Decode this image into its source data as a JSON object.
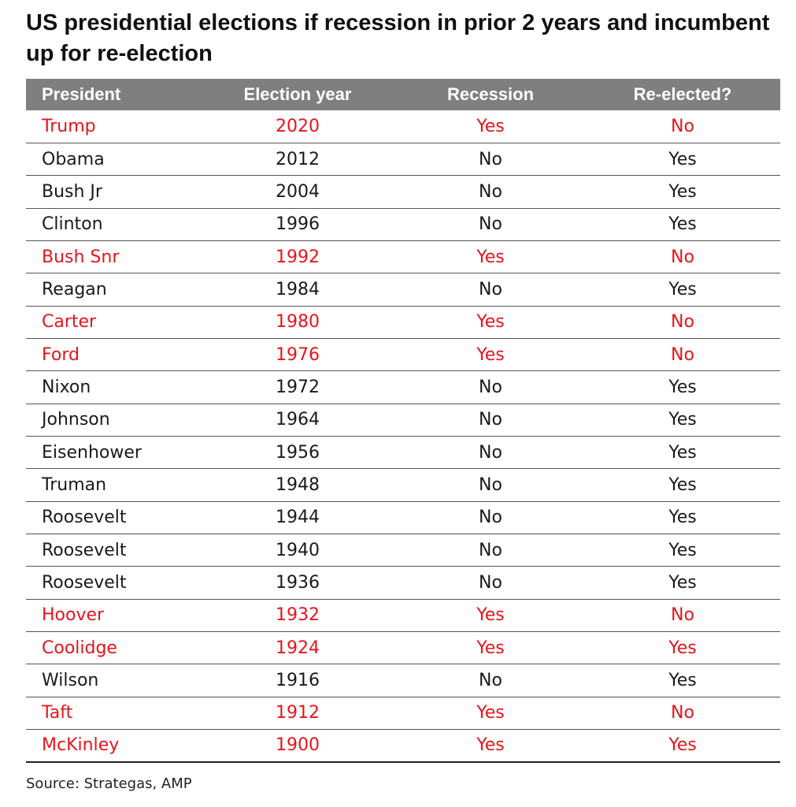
{
  "title": "US presidential elections if recession in prior 2 years and incumbent up for re-election",
  "table": {
    "headers": [
      "President",
      "Election year",
      "Recession",
      "Re-elected?"
    ],
    "rows": [
      {
        "president": "Trump",
        "year": "2020",
        "recession": "Yes",
        "reelected": "No",
        "highlight": true
      },
      {
        "president": "Obama",
        "year": "2012",
        "recession": "No",
        "reelected": "Yes",
        "highlight": false
      },
      {
        "president": "Bush Jr",
        "year": "2004",
        "recession": "No",
        "reelected": "Yes",
        "highlight": false
      },
      {
        "president": "Clinton",
        "year": "1996",
        "recession": "No",
        "reelected": "Yes",
        "highlight": false
      },
      {
        "president": "Bush Snr",
        "year": "1992",
        "recession": "Yes",
        "reelected": "No",
        "highlight": true
      },
      {
        "president": "Reagan",
        "year": "1984",
        "recession": "No",
        "reelected": "Yes",
        "highlight": false
      },
      {
        "president": "Carter",
        "year": "1980",
        "recession": "Yes",
        "reelected": "No",
        "highlight": true
      },
      {
        "president": "Ford",
        "year": "1976",
        "recession": "Yes",
        "reelected": "No",
        "highlight": true
      },
      {
        "president": "Nixon",
        "year": "1972",
        "recession": "No",
        "reelected": "Yes",
        "highlight": false
      },
      {
        "president": "Johnson",
        "year": "1964",
        "recession": "No",
        "reelected": "Yes",
        "highlight": false
      },
      {
        "president": "Eisenhower",
        "year": "1956",
        "recession": "No",
        "reelected": "Yes",
        "highlight": false
      },
      {
        "president": "Truman",
        "year": "1948",
        "recession": "No",
        "reelected": "Yes",
        "highlight": false
      },
      {
        "president": "Roosevelt",
        "year": "1944",
        "recession": "No",
        "reelected": "Yes",
        "highlight": false
      },
      {
        "president": "Roosevelt",
        "year": "1940",
        "recession": "No",
        "reelected": "Yes",
        "highlight": false
      },
      {
        "president": "Roosevelt",
        "year": "1936",
        "recession": "No",
        "reelected": "Yes",
        "highlight": false
      },
      {
        "president": "Hoover",
        "year": "1932",
        "recession": "Yes",
        "reelected": "No",
        "highlight": true
      },
      {
        "president": "Coolidge",
        "year": "1924",
        "recession": "Yes",
        "reelected": "Yes",
        "highlight": true
      },
      {
        "president": "Wilson",
        "year": "1916",
        "recession": "No",
        "reelected": "Yes",
        "highlight": false
      },
      {
        "president": "Taft",
        "year": "1912",
        "recession": "Yes",
        "reelected": "No",
        "highlight": true
      },
      {
        "president": "McKinley",
        "year": "1900",
        "recession": "Yes",
        "reelected": "Yes",
        "highlight": true
      }
    ]
  },
  "source": "Source: Strategas, AMP",
  "colors": {
    "header_bg": "#7f7f7f",
    "header_text": "#ffffff",
    "highlight_text": "#e8141b",
    "body_text": "#1a1a1a"
  }
}
